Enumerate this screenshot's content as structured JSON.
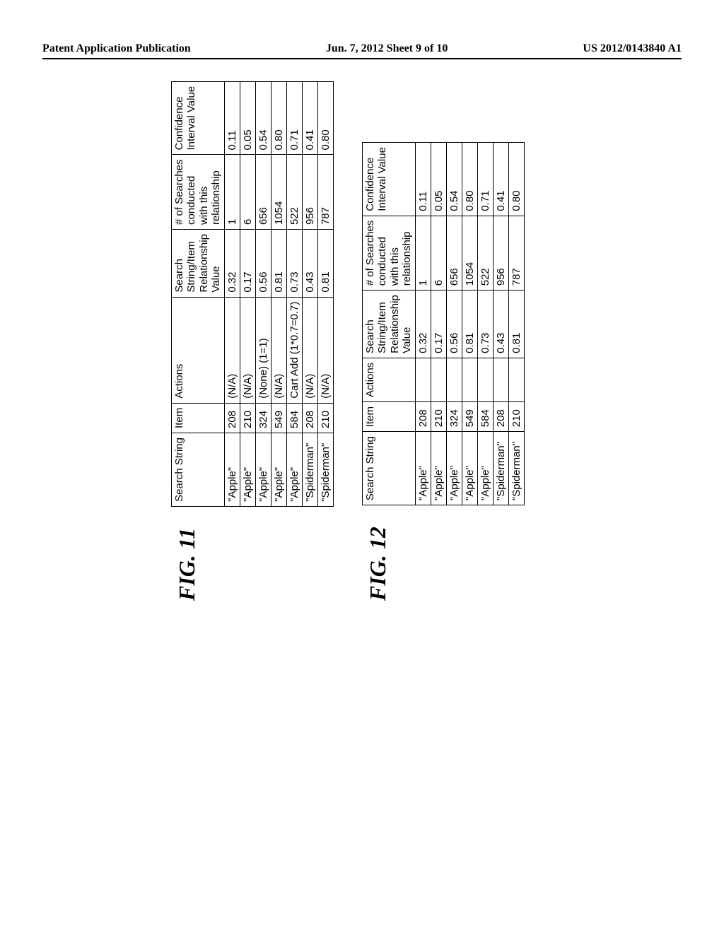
{
  "header": {
    "left": "Patent Application Publication",
    "center": "Jun. 7, 2012  Sheet 9 of 10",
    "right": "US 2012/0143840 A1"
  },
  "figures": [
    {
      "label": "FIG. 11",
      "columns": [
        "Search String",
        "Item",
        "Actions",
        "Search\nString/Item\nRelationship\nValue",
        "# of Searches\nconducted\nwith this\nrelationship",
        "Confidence\nInterval Value"
      ],
      "rows": [
        [
          "\"Apple\"",
          "208",
          "(N/A)",
          "0.32",
          "1",
          "0.11"
        ],
        [
          "\"Apple\"",
          "210",
          "(N/A)",
          "0.17",
          "6",
          "0.05"
        ],
        [
          "\"Apple\"",
          "324",
          "(None) (1=1)",
          "0.56",
          "656",
          "0.54"
        ],
        [
          "\"Apple\"",
          "549",
          "(N/A)",
          "0.81",
          "1054",
          "0.80"
        ],
        [
          "\"Apple\"",
          "584",
          "Cart Add (1*0.7=0.7)",
          "0.73",
          "522",
          "0.71"
        ],
        [
          "\"Spiderman\"",
          "208",
          "(N/A)",
          "0.43",
          "956",
          "0.41"
        ],
        [
          "\"Spiderman\"",
          "210",
          "(N/A)",
          "0.81",
          "787",
          "0.80"
        ]
      ]
    },
    {
      "label": "FIG. 12",
      "columns": [
        "Search String",
        "Item",
        "Actions",
        "Search\nString/Item\nRelationship\nValue",
        "# of Searches\nconducted\nwith this\nrelationship",
        "Confidence\nInterval Value"
      ],
      "rows": [
        [
          "\"Apple\"",
          "208",
          "",
          "0.32",
          "1",
          "0.11"
        ],
        [
          "\"Apple\"",
          "210",
          "",
          "0.17",
          "6",
          "0.05"
        ],
        [
          "\"Apple\"",
          "324",
          "",
          "0.56",
          "656",
          "0.54"
        ],
        [
          "\"Apple\"",
          "549",
          "",
          "0.81",
          "1054",
          "0.80"
        ],
        [
          "\"Apple\"",
          "584",
          "",
          "0.73",
          "522",
          "0.71"
        ],
        [
          "\"Spiderman\"",
          "208",
          "",
          "0.43",
          "956",
          "0.41"
        ],
        [
          "\"Spiderman\"",
          "210",
          "",
          "0.81",
          "787",
          "0.80"
        ]
      ]
    }
  ]
}
